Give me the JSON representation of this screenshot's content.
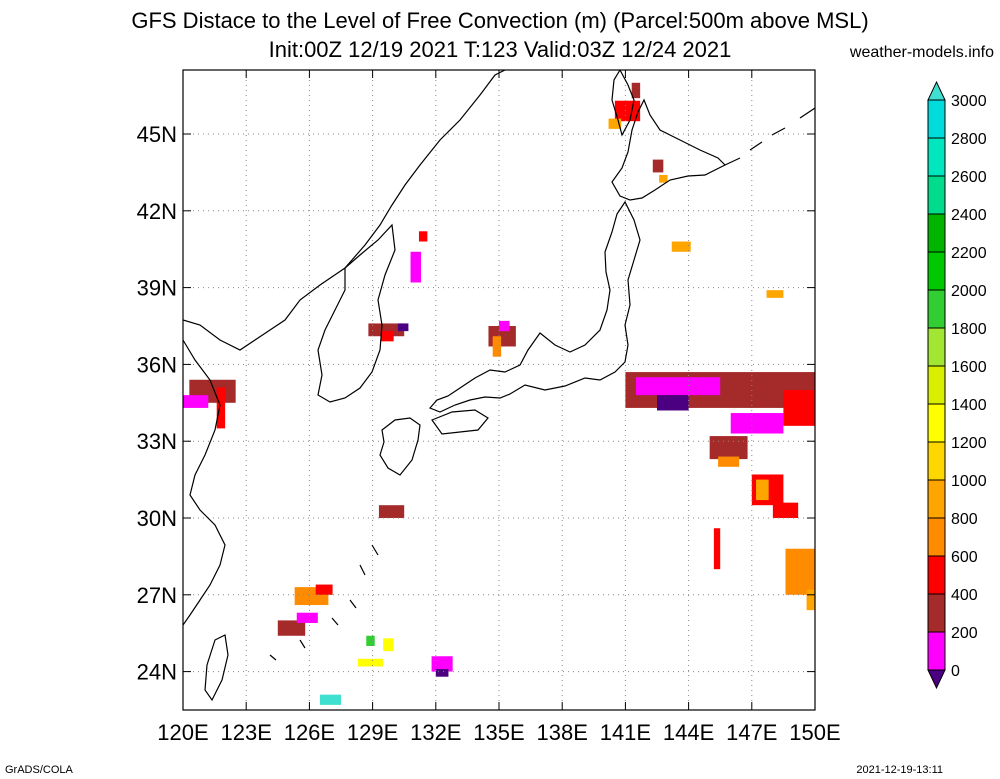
{
  "title_line1": "GFS Distace to the Level of Free Convection (m) (Parcel:500m above MSL)",
  "title_line2": "Init:00Z 12/19 2021 T:123 Valid:03Z 12/24 2021",
  "site": "weather-models.info",
  "footer_left": "GrADS/COLA",
  "footer_right": "2021-12-19-13:11",
  "lon_labels": [
    "120E",
    "123E",
    "126E",
    "129E",
    "132E",
    "135E",
    "138E",
    "141E",
    "144E",
    "147E",
    "150E"
  ],
  "lat_labels": [
    "45N",
    "42N",
    "39N",
    "36N",
    "33N",
    "30N",
    "27N",
    "24N"
  ],
  "colorbar": {
    "levels": [
      "0",
      "200",
      "400",
      "600",
      "800",
      "1000",
      "1200",
      "1400",
      "1600",
      "1800",
      "2000",
      "2200",
      "2400",
      "2600",
      "2800",
      "3000"
    ],
    "colors": [
      "#4b0082",
      "#ff00ff",
      "#a52a2a",
      "#ff0000",
      "#ff8c00",
      "#ffa500",
      "#ffd700",
      "#ffff00",
      "#d8f000",
      "#a0e632",
      "#32cd32",
      "#00c800",
      "#00b400",
      "#00dc8c",
      "#00e6be",
      "#00dcdc",
      "#40e0d0"
    ]
  },
  "map": {
    "lon_range": [
      120,
      150
    ],
    "lat_range": [
      22.5,
      47.5
    ],
    "gridlines": true,
    "blobs": [
      {
        "lon": 120.3,
        "lat": 34.5,
        "w": 2.2,
        "h": 0.9,
        "color": "#a52a2a"
      },
      {
        "lon": 120.0,
        "lat": 34.3,
        "w": 1.2,
        "h": 0.5,
        "color": "#ff00ff"
      },
      {
        "lon": 121.6,
        "lat": 33.5,
        "w": 0.4,
        "h": 1.6,
        "color": "#ff0000"
      },
      {
        "lon": 128.8,
        "lat": 37.1,
        "w": 1.7,
        "h": 0.5,
        "color": "#a52a2a"
      },
      {
        "lon": 129.4,
        "lat": 36.9,
        "w": 0.6,
        "h": 0.4,
        "color": "#ff0000"
      },
      {
        "lon": 130.2,
        "lat": 37.3,
        "w": 0.5,
        "h": 0.3,
        "color": "#4b0082"
      },
      {
        "lon": 130.8,
        "lat": 39.2,
        "w": 0.5,
        "h": 1.2,
        "color": "#ff00ff"
      },
      {
        "lon": 131.2,
        "lat": 40.8,
        "w": 0.4,
        "h": 0.4,
        "color": "#ff0000"
      },
      {
        "lon": 134.5,
        "lat": 36.7,
        "w": 1.3,
        "h": 0.8,
        "color": "#a52a2a"
      },
      {
        "lon": 134.7,
        "lat": 36.3,
        "w": 0.4,
        "h": 0.8,
        "color": "#ff8c00"
      },
      {
        "lon": 135.0,
        "lat": 37.3,
        "w": 0.5,
        "h": 0.4,
        "color": "#ff00ff"
      },
      {
        "lon": 141.0,
        "lat": 34.3,
        "w": 9.0,
        "h": 1.4,
        "color": "#a52a2a"
      },
      {
        "lon": 141.5,
        "lat": 34.8,
        "w": 4.0,
        "h": 0.7,
        "color": "#ff00ff"
      },
      {
        "lon": 142.5,
        "lat": 34.2,
        "w": 1.5,
        "h": 0.6,
        "color": "#4b0082"
      },
      {
        "lon": 146.0,
        "lat": 33.3,
        "w": 2.5,
        "h": 0.8,
        "color": "#ff00ff"
      },
      {
        "lon": 148.5,
        "lat": 33.6,
        "w": 1.5,
        "h": 1.4,
        "color": "#ff0000"
      },
      {
        "lon": 145.0,
        "lat": 32.3,
        "w": 1.8,
        "h": 0.9,
        "color": "#a52a2a"
      },
      {
        "lon": 145.4,
        "lat": 32.0,
        "w": 1.0,
        "h": 0.4,
        "color": "#ff8c00"
      },
      {
        "lon": 147.0,
        "lat": 30.5,
        "w": 1.5,
        "h": 1.2,
        "color": "#ff0000"
      },
      {
        "lon": 147.2,
        "lat": 30.7,
        "w": 0.6,
        "h": 0.8,
        "color": "#ffa500"
      },
      {
        "lon": 148.0,
        "lat": 30.0,
        "w": 1.2,
        "h": 0.6,
        "color": "#ff0000"
      },
      {
        "lon": 145.2,
        "lat": 28.0,
        "w": 0.3,
        "h": 1.6,
        "color": "#ff0000"
      },
      {
        "lon": 148.6,
        "lat": 27.0,
        "w": 1.4,
        "h": 1.8,
        "color": "#ff8c00"
      },
      {
        "lon": 149.6,
        "lat": 26.4,
        "w": 0.5,
        "h": 0.8,
        "color": "#ffa500"
      },
      {
        "lon": 140.5,
        "lat": 45.5,
        "w": 1.2,
        "h": 0.8,
        "color": "#ff0000"
      },
      {
        "lon": 140.2,
        "lat": 45.2,
        "w": 0.6,
        "h": 0.4,
        "color": "#ffa500"
      },
      {
        "lon": 141.3,
        "lat": 46.4,
        "w": 0.4,
        "h": 0.6,
        "color": "#a52a2a"
      },
      {
        "lon": 142.3,
        "lat": 43.5,
        "w": 0.5,
        "h": 0.5,
        "color": "#a52a2a"
      },
      {
        "lon": 142.6,
        "lat": 43.1,
        "w": 0.4,
        "h": 0.3,
        "color": "#ffa500"
      },
      {
        "lon": 143.2,
        "lat": 40.4,
        "w": 0.9,
        "h": 0.4,
        "color": "#ffa500"
      },
      {
        "lon": 147.7,
        "lat": 38.6,
        "w": 0.8,
        "h": 0.3,
        "color": "#ffa500"
      },
      {
        "lon": 125.3,
        "lat": 26.6,
        "w": 1.6,
        "h": 0.7,
        "color": "#ff8c00"
      },
      {
        "lon": 124.5,
        "lat": 25.4,
        "w": 1.3,
        "h": 0.6,
        "color": "#a52a2a"
      },
      {
        "lon": 125.4,
        "lat": 25.9,
        "w": 1.0,
        "h": 0.4,
        "color": "#ff00ff"
      },
      {
        "lon": 126.3,
        "lat": 27.0,
        "w": 0.8,
        "h": 0.4,
        "color": "#ff0000"
      },
      {
        "lon": 129.3,
        "lat": 30.0,
        "w": 1.2,
        "h": 0.5,
        "color": "#a52a2a"
      },
      {
        "lon": 131.8,
        "lat": 24.0,
        "w": 1.0,
        "h": 0.6,
        "color": "#ff00ff"
      },
      {
        "lon": 132.0,
        "lat": 23.8,
        "w": 0.6,
        "h": 0.3,
        "color": "#4b0082"
      },
      {
        "lon": 128.3,
        "lat": 24.2,
        "w": 1.2,
        "h": 0.3,
        "color": "#ffff00"
      },
      {
        "lon": 128.7,
        "lat": 25.0,
        "w": 0.4,
        "h": 0.4,
        "color": "#32cd32"
      },
      {
        "lon": 129.5,
        "lat": 24.8,
        "w": 0.5,
        "h": 0.5,
        "color": "#ffff00"
      },
      {
        "lon": 126.5,
        "lat": 22.7,
        "w": 1.0,
        "h": 0.4,
        "color": "#40e0d0"
      }
    ]
  }
}
